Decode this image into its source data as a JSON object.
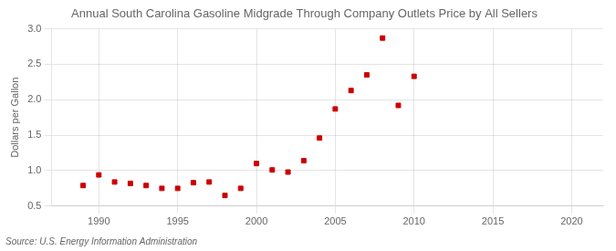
{
  "chart_data": {
    "type": "scatter",
    "title": "Annual South Carolina Gasoline Midgrade Through Company Outlets Price by All Sellers",
    "ylabel": "Dollars per Gallon",
    "annotations": [
      "Source: U.S. Energy Information Administration"
    ],
    "x": [
      1989,
      1990,
      1991,
      1992,
      1993,
      1994,
      1995,
      1996,
      1997,
      1998,
      1999,
      2000,
      2001,
      2002,
      2003,
      2004,
      2005,
      2006,
      2007,
      2008,
      2009,
      2010
    ],
    "values": [
      0.79,
      0.94,
      0.84,
      0.82,
      0.79,
      0.75,
      0.75,
      0.83,
      0.84,
      0.65,
      0.75,
      1.1,
      1.01,
      0.98,
      1.14,
      1.46,
      1.87,
      2.13,
      2.35,
      2.87,
      1.92,
      2.33
    ],
    "color": "#cc0000",
    "marker": "square",
    "xlim": [
      1987,
      2022
    ],
    "xticks": [
      1990,
      1995,
      2000,
      2005,
      2010,
      2015,
      2020
    ],
    "ylim": [
      0.5,
      3.0
    ],
    "yticks": [
      0.5,
      {
        "value": 1,
        "label": "1.0"
      },
      1.5,
      {
        "value": 2,
        "label": "2.0"
      },
      2.5,
      {
        "value": 3,
        "label": "3.0"
      }
    ],
    "grid": true
  }
}
